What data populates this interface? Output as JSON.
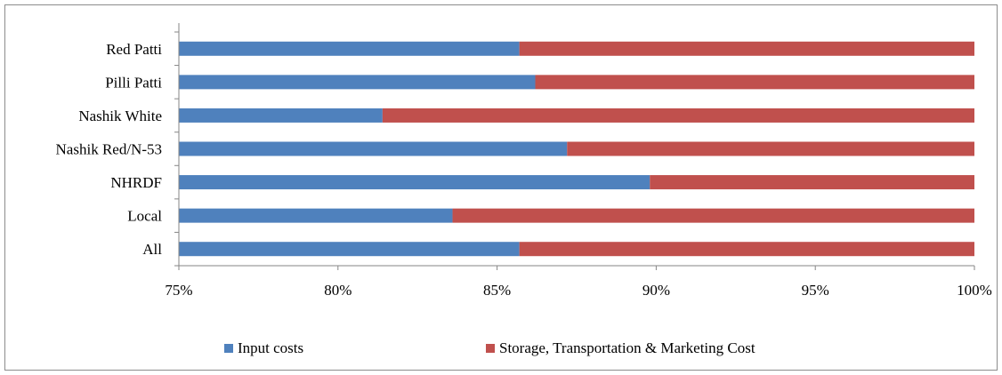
{
  "chart_data": {
    "type": "bar",
    "orientation": "horizontal",
    "stacked": "percent",
    "categories": [
      "Red Patti",
      "Pilli Patti",
      "Nashik White",
      "Nashik Red/N-53",
      "NHRDF",
      "Local",
      "All"
    ],
    "series": [
      {
        "name": "Input costs",
        "color": "#4f81bd",
        "values": [
          85.7,
          86.2,
          81.4,
          87.2,
          89.8,
          83.6,
          85.7
        ]
      },
      {
        "name": "Storage, Transportation & Marketing Cost",
        "color": "#c0504d",
        "values": [
          14.3,
          13.8,
          18.6,
          12.8,
          10.2,
          16.4,
          14.3
        ]
      }
    ],
    "xlim": [
      75,
      100
    ],
    "xticks": [
      "75%",
      "80%",
      "85%",
      "90%",
      "95%",
      "100%"
    ],
    "grid": false,
    "legend_position": "bottom",
    "title": "",
    "xlabel": "",
    "ylabel": ""
  }
}
